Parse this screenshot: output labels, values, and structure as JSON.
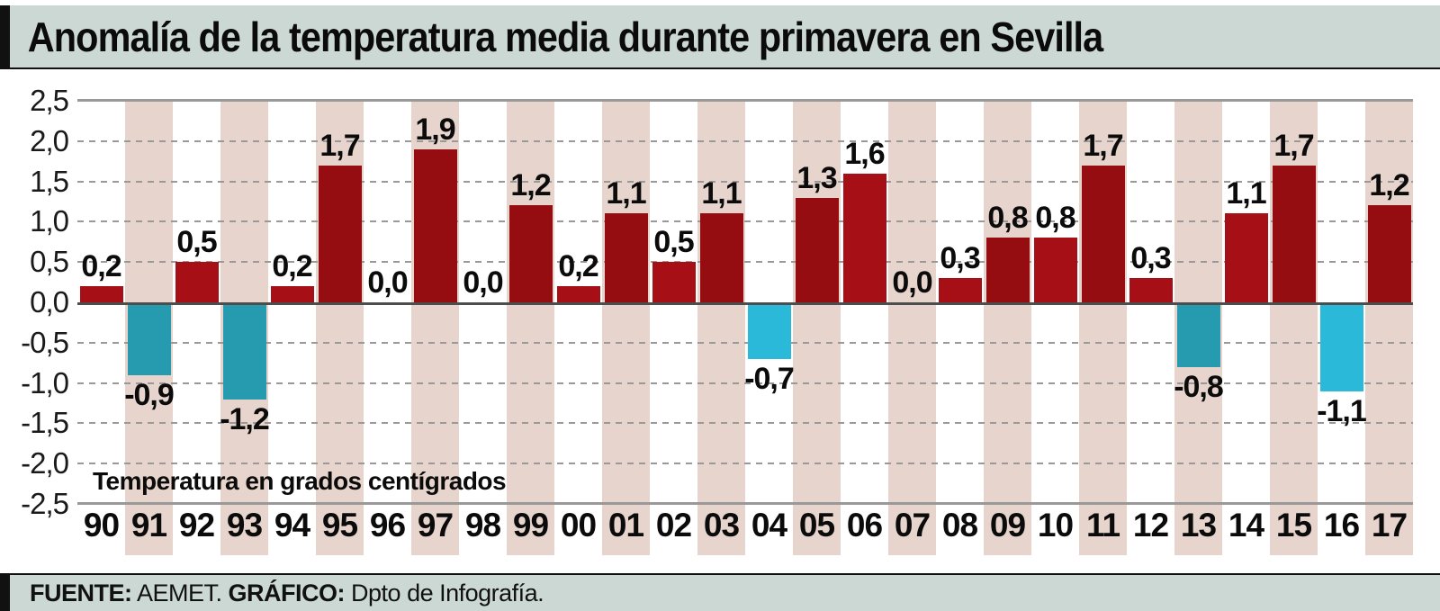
{
  "title": "Anomalía de la temperatura media durante primavera en Sevilla",
  "chart_data": {
    "type": "bar",
    "title": "Anomalía de la temperatura media durante primavera en Sevilla",
    "subtitle": "Temperatura en grados centígrados",
    "categories": [
      "90",
      "91",
      "92",
      "93",
      "94",
      "95",
      "96",
      "97",
      "98",
      "99",
      "00",
      "01",
      "02",
      "03",
      "04",
      "05",
      "06",
      "07",
      "08",
      "09",
      "10",
      "11",
      "12",
      "13",
      "14",
      "15",
      "16",
      "17"
    ],
    "values": [
      0.2,
      -0.9,
      0.5,
      -1.2,
      0.2,
      1.7,
      0.0,
      1.9,
      0.0,
      1.2,
      0.2,
      1.1,
      0.5,
      1.1,
      -0.7,
      1.3,
      1.6,
      0.0,
      0.3,
      0.8,
      0.8,
      1.7,
      0.3,
      -0.8,
      1.1,
      1.7,
      -1.1,
      1.2
    ],
    "value_labels": [
      "0,2",
      "-0,9",
      "0,5",
      "-1,2",
      "0,2",
      "1,7",
      "0,0",
      "1,9",
      "0,0",
      "1,2",
      "0,2",
      "1,1",
      "0,5",
      "1,1",
      "-0,7",
      "1,3",
      "1,6",
      "0,0",
      "0,3",
      "0,8",
      "0,8",
      "1,7",
      "0,3",
      "-0,8",
      "1,1",
      "1,7",
      "-1,1",
      "1,2"
    ],
    "y_ticks": [
      {
        "label": "2,5",
        "value": 2.5
      },
      {
        "label": "2,0",
        "value": 2.0
      },
      {
        "label": "1,5",
        "value": 1.5
      },
      {
        "label": "1,0",
        "value": 1.0
      },
      {
        "label": "0,5",
        "value": 0.5
      },
      {
        "label": "0,0",
        "value": 0.0
      },
      {
        "label": "-0,5",
        "value": -0.5
      },
      {
        "label": "-1,0",
        "value": -1.0
      },
      {
        "label": "-1,5",
        "value": -1.5
      },
      {
        "label": "-2,0",
        "value": -2.0
      },
      {
        "label": "-2,5",
        "value": -2.5
      }
    ],
    "ylim": [
      -2.5,
      2.5
    ],
    "grid": "dashed horizontal lines every 0.5, solid border at ±2.5, solid dark zero line",
    "legend": "none",
    "striped_background": "alternating light pink vertical bands on odd columns (91,93,95,...,17)",
    "colors": {
      "positive": "#a50f15",
      "positive_on_stripe": "#950d11",
      "negative": "#2ab9d9",
      "negative_on_stripe": "#269aae",
      "stripe": "#e7d5cd",
      "grid": "#999999",
      "zero_line": "#4d4d4d",
      "panel_bg": "#ccd8d4"
    }
  },
  "footer": {
    "source_label": "FUENTE:",
    "source_value": " AEMET. ",
    "credit_label": "GRÁFICO:",
    "credit_value": " Dpto de Infografía."
  }
}
